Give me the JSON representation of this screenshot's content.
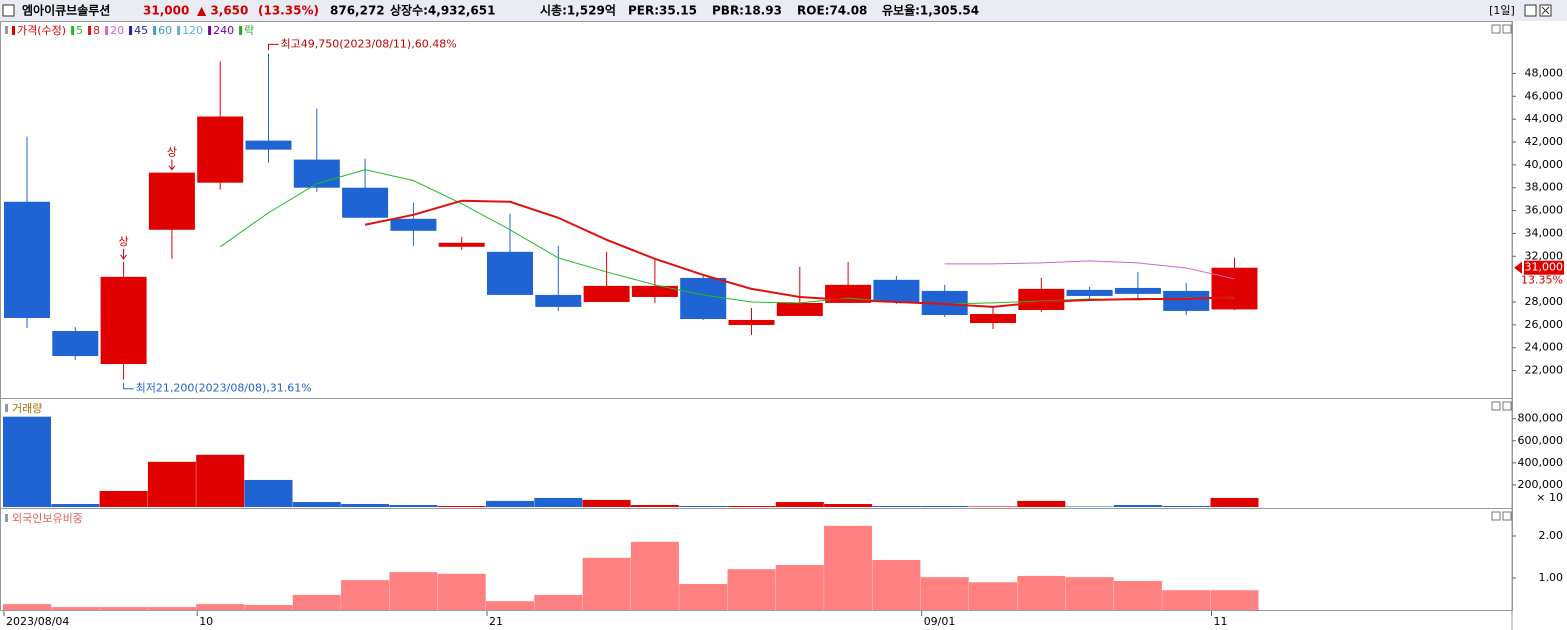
{
  "header": {
    "name": "엠아이큐브솔루션",
    "price": "31,000",
    "change": "▲ 3,650",
    "change_rate": "(13.35%)",
    "volume": "876,272",
    "listed": "상장수:4,932,651",
    "market_cap": "시총:1,529억",
    "per": "PER:35.15",
    "pbr": "PBR:18.93",
    "roe": "ROE:74.08",
    "reserve": "유보율:1,305.54",
    "period": "[1일]"
  },
  "chart_data": [
    {
      "type": "candlestick",
      "price_label": "가격(수정)",
      "ex_mark": "락",
      "up_color": "#e00000",
      "down_color": "#1f64d2",
      "categories": [
        "2023/08/04",
        null,
        null,
        null,
        "10",
        null,
        null,
        null,
        null,
        null,
        "21",
        null,
        null,
        null,
        null,
        null,
        null,
        null,
        null,
        "09/01",
        null,
        null,
        null,
        null,
        null,
        "11"
      ],
      "open": [
        36770,
        25460,
        22570,
        34320,
        38440,
        42120,
        40460,
        38000,
        35280,
        32830,
        32390,
        28620,
        28000,
        28440,
        30110,
        25990,
        26780,
        27920,
        29940,
        28970,
        26160,
        27300,
        29060,
        29230,
        28970,
        27350
      ],
      "high": [
        42470,
        25810,
        31510,
        39320,
        49050,
        49750,
        44930,
        40540,
        36690,
        33700,
        35720,
        32920,
        32390,
        31780,
        30280,
        27480,
        31070,
        31510,
        30280,
        29500,
        27570,
        30110,
        29320,
        30630,
        29670,
        31860
      ],
      "low": [
        25720,
        22920,
        21200,
        31780,
        37830,
        40190,
        37650,
        35370,
        32920,
        32560,
        28620,
        27220,
        28000,
        27920,
        26430,
        25110,
        26780,
        27920,
        27830,
        26690,
        25640,
        27130,
        28180,
        28350,
        26860,
        27300
      ],
      "close": [
        26600,
        23270,
        30200,
        39320,
        44230,
        41330,
        38000,
        35370,
        34230,
        33180,
        28620,
        27570,
        29410,
        29410,
        26510,
        26430,
        27920,
        29500,
        28000,
        26860,
        26950,
        29150,
        28530,
        28710,
        27220,
        31000
      ],
      "limit_up": [
        null,
        null,
        "상",
        "상",
        null,
        null,
        null,
        null,
        null,
        null,
        null,
        null,
        null,
        null,
        null,
        null,
        null,
        null,
        null,
        null,
        null,
        null,
        null,
        null,
        null,
        null
      ],
      "high_label": "최고49,750(2023/08/11),60.48%",
      "low_label": "최저21,200(2023/08/08),31.61%",
      "last_price_label": "31,000",
      "last_change_label": "13.35%",
      "series": [
        {
          "name": "5",
          "color": "#22bb22",
          "values": [
            null,
            null,
            null,
            null,
            32830,
            35810,
            38350,
            39580,
            38620,
            36600,
            34320,
            31860,
            30630,
            29500,
            28620,
            28000,
            27920,
            28350,
            28000,
            27830,
            27920,
            28090,
            28260,
            28180,
            28350,
            28350
          ]
        },
        {
          "name": "8",
          "color": "#e01010",
          "values": [
            null,
            null,
            null,
            null,
            null,
            null,
            null,
            34760,
            35630,
            36860,
            36770,
            35370,
            33440,
            31780,
            30370,
            29150,
            28440,
            28180,
            28000,
            27830,
            27570,
            28000,
            28180,
            28260,
            28260,
            28440
          ]
        },
        {
          "name": "20",
          "color": "#cc66cc",
          "values": [
            null,
            null,
            null,
            null,
            null,
            null,
            null,
            null,
            null,
            null,
            null,
            null,
            null,
            null,
            null,
            null,
            null,
            null,
            null,
            31340,
            31340,
            31420,
            31600,
            31420,
            30980,
            30020
          ]
        }
      ],
      "other_lines": [
        {
          "name": "45",
          "color": "#2020a0"
        },
        {
          "name": "60",
          "color": "#40a0c0"
        },
        {
          "name": "120",
          "color": "#60b0d0"
        },
        {
          "name": "240",
          "color": "#8000a0"
        }
      ],
      "ylim": [
        19600,
        52500
      ],
      "yticks": [
        {
          "value": 22000,
          "label": "22,000"
        },
        {
          "value": 24000,
          "label": "24,000"
        },
        {
          "value": 26000,
          "label": "26,000"
        },
        {
          "value": 28000,
          "label": "28,000"
        },
        {
          "value": 32000,
          "label": "32,000"
        },
        {
          "value": 34000,
          "label": "34,000"
        },
        {
          "value": 36000,
          "label": "36,000"
        },
        {
          "value": 38000,
          "label": "38,000"
        },
        {
          "value": 40000,
          "label": "40,000"
        },
        {
          "value": 42000,
          "label": "42,000"
        },
        {
          "value": 44000,
          "label": "44,000"
        },
        {
          "value": 46000,
          "label": "46,000"
        },
        {
          "value": 48000,
          "label": "48,000"
        }
      ]
    },
    {
      "type": "bar",
      "title": "거래량",
      "unit": "× 10",
      "values": [
        818000,
        27000,
        145000,
        409000,
        473000,
        245000,
        45000,
        27000,
        18000,
        9000,
        55000,
        82000,
        64000,
        18000,
        9000,
        9000,
        45000,
        27000,
        9000,
        9000,
        5000,
        55000,
        5000,
        18000,
        9000,
        82000
      ],
      "ylim": [
        0,
        960000
      ],
      "yticks": [
        {
          "value": 200000,
          "label": "200,000"
        },
        {
          "value": 400000,
          "label": "400,000"
        },
        {
          "value": 600000,
          "label": "600,000"
        },
        {
          "value": 800000,
          "label": "800,000"
        }
      ]
    },
    {
      "type": "bar",
      "title": "외국인보유비중",
      "color": "#ff8080",
      "values": [
        0.38,
        0.31,
        0.31,
        0.31,
        0.38,
        0.36,
        0.6,
        0.95,
        1.14,
        1.1,
        0.45,
        0.6,
        1.48,
        1.86,
        0.86,
        1.21,
        1.31,
        2.24,
        1.43,
        1.02,
        0.9,
        1.05,
        1.02,
        0.93,
        0.71,
        0.71
      ],
      "ylim": [
        0.24,
        2.57
      ],
      "yticks": [
        {
          "value": 1,
          "label": "1.00"
        },
        {
          "value": 2,
          "label": "2.00"
        }
      ]
    }
  ]
}
